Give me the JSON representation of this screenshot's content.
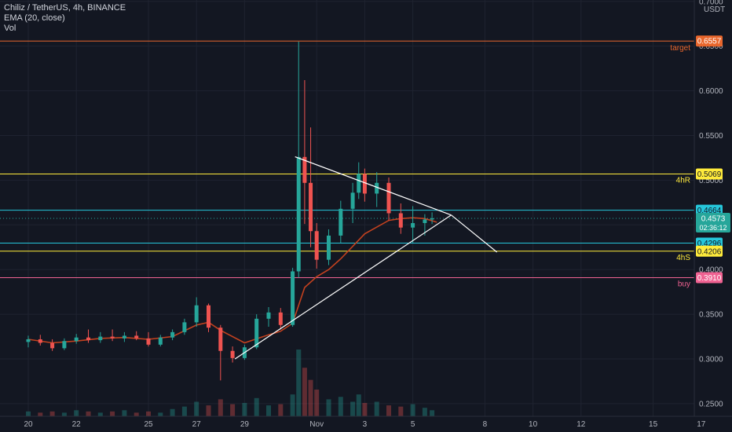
{
  "chart_data": {
    "type": "candlestick",
    "title": "Chiliz / TetherUS, 4h, BINANCE",
    "indicators": [
      "EMA (20, close)",
      "Vol"
    ],
    "currency": "USDT",
    "y_ticks": [
      "0.2500",
      "0.3000",
      "0.3500",
      "0.4000",
      "0.4500",
      "0.5000",
      "0.5500",
      "0.6000",
      "0.6500",
      "0.7000"
    ],
    "ylim": [
      0.245,
      0.705
    ],
    "x_ticks": [
      {
        "label": "20",
        "day": 0
      },
      {
        "label": "22",
        "day": 2
      },
      {
        "label": "25",
        "day": 5
      },
      {
        "label": "27",
        "day": 7
      },
      {
        "label": "29",
        "day": 9
      },
      {
        "label": "Nov",
        "day": 12
      },
      {
        "label": "3",
        "day": 14
      },
      {
        "label": "5",
        "day": 16
      },
      {
        "label": "8",
        "day": 19
      },
      {
        "label": "10",
        "day": 21
      },
      {
        "label": "12",
        "day": 23
      },
      {
        "label": "15",
        "day": 26
      },
      {
        "label": "17",
        "day": 28
      }
    ],
    "horizontal_levels": [
      {
        "value": 0.6557,
        "label": "target",
        "price_label": "0.6557",
        "color": "#e8662c"
      },
      {
        "value": 0.5069,
        "label": "4hR",
        "price_label": "0.5069",
        "color": "#ffeb3b"
      },
      {
        "value": 0.4664,
        "label": "",
        "price_label": "0.4664",
        "color": "#26c6da"
      },
      {
        "value": 0.4296,
        "label": "",
        "price_label": "0.4296",
        "color": "#26c6da"
      },
      {
        "value": 0.4206,
        "label": "4hS",
        "price_label": "0.4206",
        "color": "#ffeb3b"
      },
      {
        "value": 0.391,
        "label": "buy",
        "price_label": "0.3910",
        "color": "#f06292"
      }
    ],
    "last_price": {
      "value": 0.4573,
      "label": "0.4573",
      "countdown": "02:36:12"
    },
    "trendlines": [
      {
        "from": [
          11.1,
          0.5262
        ],
        "to": [
          17.6,
          0.461
        ]
      },
      {
        "from": [
          17.6,
          0.461
        ],
        "to": [
          19.5,
          0.4195
        ]
      },
      {
        "from": [
          8.6,
          0.3
        ],
        "to": [
          17.6,
          0.461
        ]
      }
    ],
    "candles": [
      {
        "day": 0.0,
        "o": 0.319,
        "h": 0.326,
        "l": 0.313,
        "c": 0.322
      },
      {
        "day": 0.5,
        "o": 0.322,
        "h": 0.327,
        "l": 0.315,
        "c": 0.318
      },
      {
        "day": 1.0,
        "o": 0.318,
        "h": 0.322,
        "l": 0.309,
        "c": 0.312
      },
      {
        "day": 1.5,
        "o": 0.312,
        "h": 0.323,
        "l": 0.31,
        "c": 0.32
      },
      {
        "day": 2.0,
        "o": 0.32,
        "h": 0.328,
        "l": 0.317,
        "c": 0.324
      },
      {
        "day": 2.5,
        "o": 0.324,
        "h": 0.333,
        "l": 0.318,
        "c": 0.321
      },
      {
        "day": 3.0,
        "o": 0.321,
        "h": 0.33,
        "l": 0.318,
        "c": 0.325
      },
      {
        "day": 3.5,
        "o": 0.325,
        "h": 0.333,
        "l": 0.32,
        "c": 0.323
      },
      {
        "day": 4.0,
        "o": 0.323,
        "h": 0.33,
        "l": 0.319,
        "c": 0.326
      },
      {
        "day": 4.5,
        "o": 0.326,
        "h": 0.331,
        "l": 0.321,
        "c": 0.323
      },
      {
        "day": 5.0,
        "o": 0.323,
        "h": 0.33,
        "l": 0.314,
        "c": 0.316
      },
      {
        "day": 5.5,
        "o": 0.316,
        "h": 0.327,
        "l": 0.314,
        "c": 0.324
      },
      {
        "day": 6.0,
        "o": 0.324,
        "h": 0.333,
        "l": 0.321,
        "c": 0.33
      },
      {
        "day": 6.5,
        "o": 0.33,
        "h": 0.345,
        "l": 0.327,
        "c": 0.341
      },
      {
        "day": 7.0,
        "o": 0.341,
        "h": 0.369,
        "l": 0.336,
        "c": 0.36
      },
      {
        "day": 7.5,
        "o": 0.36,
        "h": 0.362,
        "l": 0.33,
        "c": 0.335
      },
      {
        "day": 8.0,
        "o": 0.335,
        "h": 0.338,
        "l": 0.276,
        "c": 0.309
      },
      {
        "day": 8.5,
        "o": 0.309,
        "h": 0.314,
        "l": 0.296,
        "c": 0.301
      },
      {
        "day": 9.0,
        "o": 0.301,
        "h": 0.316,
        "l": 0.299,
        "c": 0.313
      },
      {
        "day": 9.5,
        "o": 0.313,
        "h": 0.35,
        "l": 0.311,
        "c": 0.345
      },
      {
        "day": 10.0,
        "o": 0.345,
        "h": 0.358,
        "l": 0.336,
        "c": 0.352
      },
      {
        "day": 10.5,
        "o": 0.352,
        "h": 0.357,
        "l": 0.333,
        "c": 0.338
      },
      {
        "day": 11.0,
        "o": 0.338,
        "h": 0.402,
        "l": 0.336,
        "c": 0.398
      },
      {
        "day": 11.25,
        "o": 0.398,
        "h": 0.655,
        "l": 0.391,
        "c": 0.526
      },
      {
        "day": 11.5,
        "o": 0.526,
        "h": 0.612,
        "l": 0.451,
        "c": 0.497
      },
      {
        "day": 11.75,
        "o": 0.497,
        "h": 0.559,
        "l": 0.425,
        "c": 0.443
      },
      {
        "day": 12.0,
        "o": 0.443,
        "h": 0.452,
        "l": 0.401,
        "c": 0.411
      },
      {
        "day": 12.5,
        "o": 0.411,
        "h": 0.445,
        "l": 0.405,
        "c": 0.438
      },
      {
        "day": 13.0,
        "o": 0.438,
        "h": 0.477,
        "l": 0.43,
        "c": 0.468
      },
      {
        "day": 13.5,
        "o": 0.468,
        "h": 0.497,
        "l": 0.452,
        "c": 0.486
      },
      {
        "day": 13.75,
        "o": 0.486,
        "h": 0.52,
        "l": 0.479,
        "c": 0.507
      },
      {
        "day": 14.0,
        "o": 0.507,
        "h": 0.513,
        "l": 0.476,
        "c": 0.485
      },
      {
        "day": 14.5,
        "o": 0.485,
        "h": 0.509,
        "l": 0.47,
        "c": 0.497
      },
      {
        "day": 15.0,
        "o": 0.497,
        "h": 0.503,
        "l": 0.455,
        "c": 0.463
      },
      {
        "day": 15.5,
        "o": 0.463,
        "h": 0.474,
        "l": 0.44,
        "c": 0.447
      },
      {
        "day": 16.0,
        "o": 0.447,
        "h": 0.471,
        "l": 0.43,
        "c": 0.452
      },
      {
        "day": 16.5,
        "o": 0.452,
        "h": 0.462,
        "l": 0.438,
        "c": 0.456
      },
      {
        "day": 16.8,
        "o": 0.456,
        "h": 0.464,
        "l": 0.451,
        "c": 0.4573
      }
    ],
    "ema": [
      [
        0.0,
        0.322
      ],
      [
        1.0,
        0.318
      ],
      [
        2.0,
        0.32
      ],
      [
        3.0,
        0.323
      ],
      [
        4.0,
        0.324
      ],
      [
        5.0,
        0.322
      ],
      [
        6.0,
        0.325
      ],
      [
        7.0,
        0.338
      ],
      [
        7.5,
        0.341
      ],
      [
        8.0,
        0.332
      ],
      [
        9.0,
        0.318
      ],
      [
        10.0,
        0.327
      ],
      [
        10.5,
        0.331
      ],
      [
        11.0,
        0.34
      ],
      [
        11.5,
        0.38
      ],
      [
        12.0,
        0.392
      ],
      [
        12.5,
        0.4
      ],
      [
        13.0,
        0.412
      ],
      [
        14.0,
        0.44
      ],
      [
        15.0,
        0.455
      ],
      [
        15.5,
        0.457
      ],
      [
        16.0,
        0.458
      ],
      [
        16.5,
        0.457
      ],
      [
        17.0,
        0.453
      ]
    ],
    "volume": [
      4,
      3,
      4,
      3,
      5,
      4,
      3,
      4,
      5,
      3,
      4,
      3,
      6,
      8,
      12,
      9,
      14,
      10,
      11,
      15,
      9,
      10,
      18,
      55,
      40,
      30,
      22,
      14,
      16,
      12,
      18,
      11,
      12,
      9,
      8,
      10,
      7,
      5
    ]
  }
}
